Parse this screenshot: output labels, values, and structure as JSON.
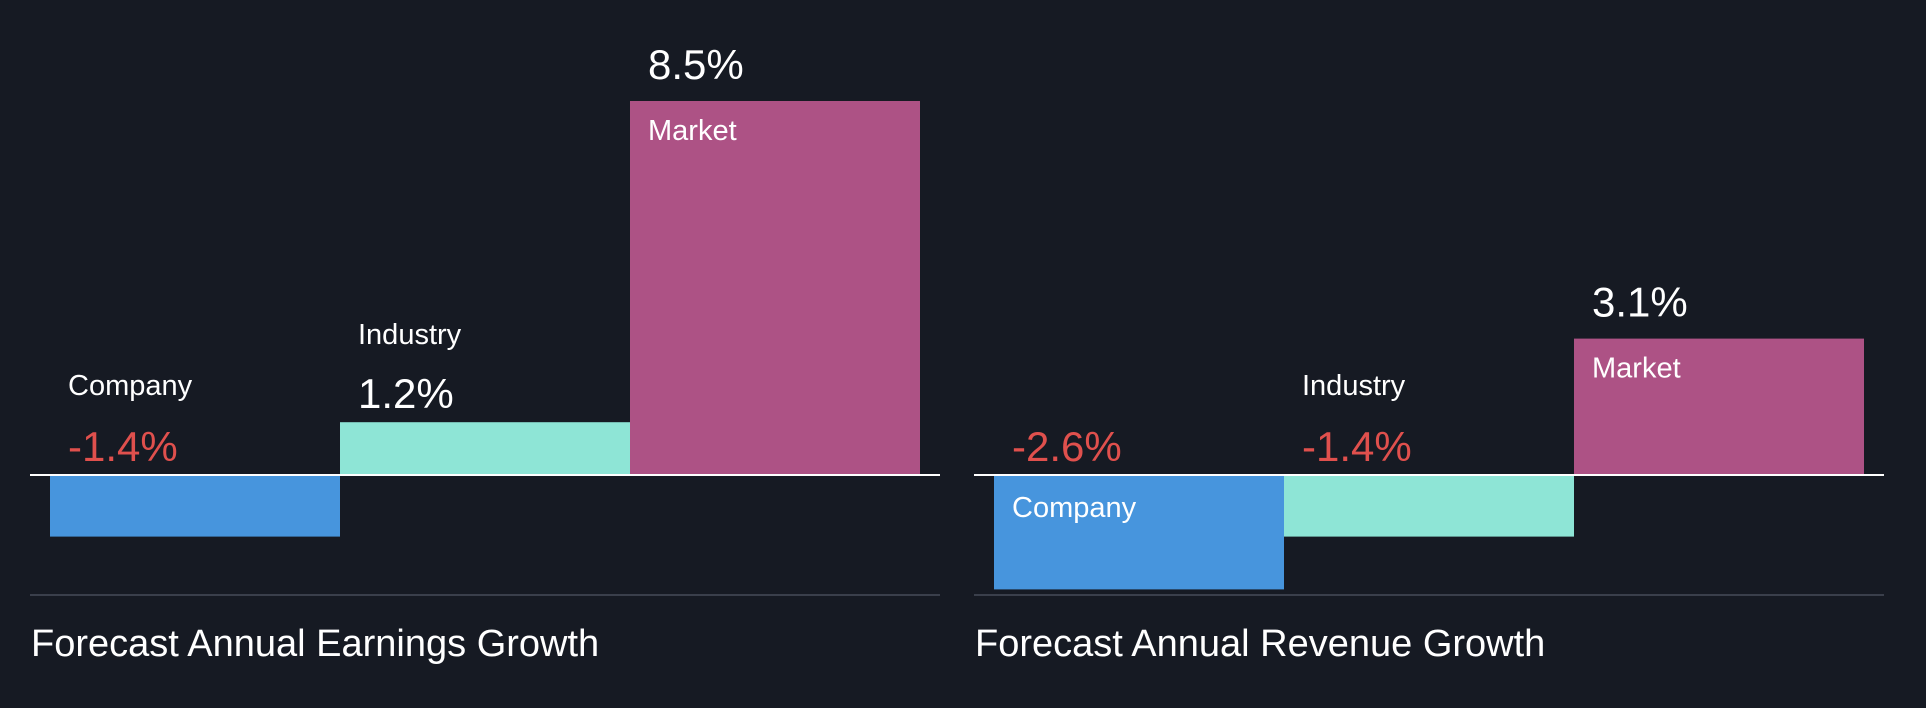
{
  "colors": {
    "background": "#161A23",
    "company": "#4795DD",
    "industry": "#8EE5D6",
    "market": "#AD5285",
    "positive_text": "#FFFFFF",
    "negative_text": "#E0504D",
    "baseline": "#FFFFFF",
    "separator": "#3A3F4B"
  },
  "chart_data": [
    {
      "type": "bar",
      "title": "Forecast Annual Earnings Growth",
      "categories": [
        "Company",
        "Industry",
        "Market"
      ],
      "values": [
        -1.4,
        1.2,
        8.5
      ],
      "value_labels": [
        "-1.4%",
        "1.2%",
        "8.5%"
      ],
      "unit": "%",
      "ylim": [
        -3.0,
        8.5
      ],
      "grid": false,
      "legend": "none"
    },
    {
      "type": "bar",
      "title": "Forecast Annual Revenue Growth",
      "categories": [
        "Company",
        "Industry",
        "Market"
      ],
      "values": [
        -2.6,
        -1.4,
        3.1
      ],
      "value_labels": [
        "-2.6%",
        "-1.4%",
        "3.1%"
      ],
      "unit": "%",
      "ylim": [
        -3.0,
        8.5
      ],
      "grid": false,
      "legend": "none"
    }
  ]
}
